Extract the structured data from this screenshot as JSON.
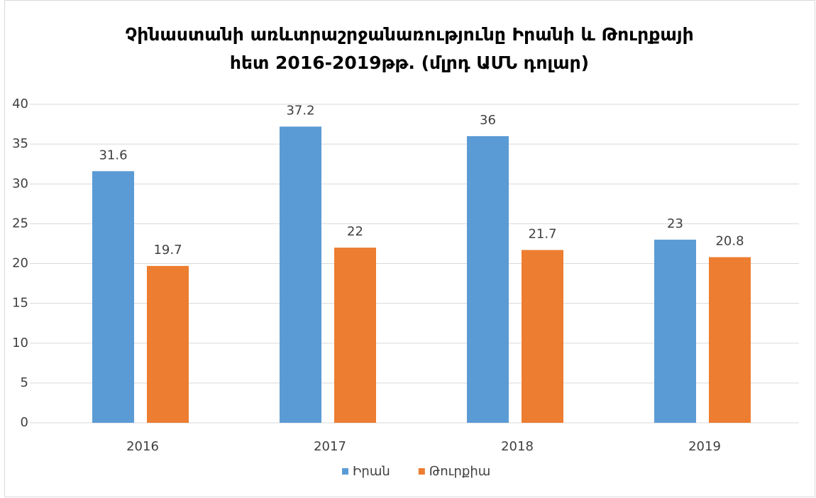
{
  "chart_data": {
    "type": "bar",
    "title": [
      "Չինաստանի առևտրաշրջանառությունը Իրանի և Թուրքայի",
      "հետ 2016-2019թթ. (մլրդ ԱՄՆ դոլար)"
    ],
    "categories": [
      "2016",
      "2017",
      "2018",
      "2019"
    ],
    "series": [
      {
        "name": "Իրան",
        "color": "#5b9bd5",
        "values": [
          31.6,
          37.2,
          36,
          23
        ]
      },
      {
        "name": "Թուրքիա",
        "color": "#ed7d31",
        "values": [
          19.7,
          22,
          21.7,
          20.8
        ]
      }
    ],
    "ylim": [
      0,
      40
    ],
    "yticks": [
      0,
      5,
      10,
      15,
      20,
      25,
      30,
      35,
      40
    ],
    "grid": true,
    "legend": "bottom"
  }
}
